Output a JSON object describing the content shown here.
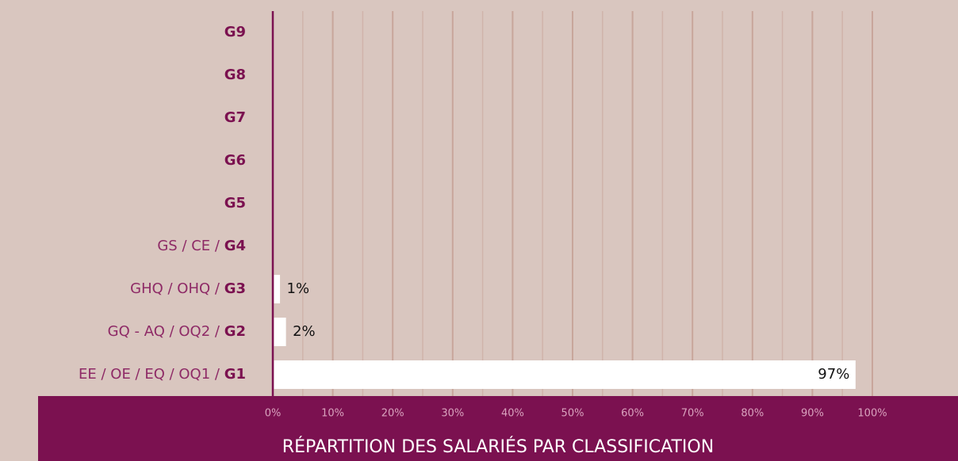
{
  "chart_data": {
    "type": "hbar",
    "title": "RÉPARTITION DES SALARIÉS PAR CLASSIFICATION",
    "categories": [
      "G9",
      "G8",
      "G7",
      "G6",
      "G5",
      "GS / CE / G4",
      "GHQ / OHQ / G3",
      "GQ - AQ / OQ2 / G2",
      "EE / OE / EQ / OQ1 / G1"
    ],
    "values": [
      0,
      0,
      0,
      0,
      0,
      0,
      1,
      2,
      97
    ],
    "value_labels": [
      null,
      null,
      null,
      null,
      null,
      null,
      "1%",
      "2%",
      "97%"
    ],
    "color": "#ffffff",
    "xlim": [
      0,
      100
    ],
    "xticks": [
      {
        "value": 0,
        "label": "0%"
      },
      {
        "value": 10,
        "label": "10%"
      },
      {
        "value": 20,
        "label": "20%"
      },
      {
        "value": 30,
        "label": "30%"
      },
      {
        "value": 40,
        "label": "40%"
      },
      {
        "value": 50,
        "label": "50%"
      },
      {
        "value": 60,
        "label": "60%"
      },
      {
        "value": 70,
        "label": "70%"
      },
      {
        "value": 80,
        "label": "80%"
      },
      {
        "value": 90,
        "label": "90%"
      },
      {
        "value": 100,
        "label": "100%"
      }
    ],
    "minor_xticks": [
      5,
      15,
      25,
      35,
      45,
      55,
      65,
      75,
      85,
      95
    ],
    "grid": true
  }
}
